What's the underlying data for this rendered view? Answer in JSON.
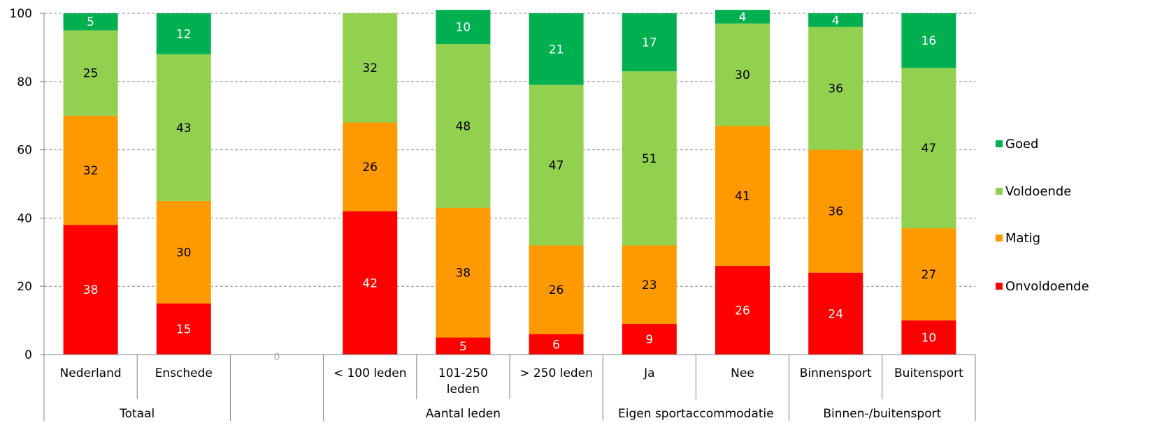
{
  "chart_data": {
    "type": "bar",
    "stacked": true,
    "title": "",
    "xlabel": "",
    "ylabel": "",
    "ylim": [
      0,
      100
    ],
    "y_ticks": [
      "0",
      "20",
      "40",
      "60",
      "80",
      "100"
    ],
    "grid": "horizontal dashed",
    "legend_position": "right",
    "categories": [
      {
        "label": [
          "Nederland"
        ],
        "group": "Totaal"
      },
      {
        "label": [
          "Enschede"
        ],
        "group": "Totaal"
      },
      {
        "label": [],
        "group": "",
        "marker": "0"
      },
      {
        "label": [
          "< 100 leden"
        ],
        "group": "Aantal leden"
      },
      {
        "label": [
          "101-250",
          "leden"
        ],
        "group": "Aantal leden"
      },
      {
        "label": [
          "> 250 leden"
        ],
        "group": "Aantal leden"
      },
      {
        "label": [
          "Ja"
        ],
        "group": "Eigen sportaccommodatie"
      },
      {
        "label": [
          "Nee"
        ],
        "group": "Eigen sportaccommodatie"
      },
      {
        "label": [
          "Binnensport"
        ],
        "group": "Binnen-/buitensport"
      },
      {
        "label": [
          "Buitensport"
        ],
        "group": "Binnen-/buitensport"
      }
    ],
    "groups": [
      "Totaal",
      "",
      "Aantal leden",
      "Eigen sportaccommodatie",
      "Binnen-/buitensport"
    ],
    "series": [
      {
        "name": "Onvoldoende",
        "color": "#ff0000",
        "label_color": "#ffffff",
        "values": [
          38,
          15,
          null,
          42,
          5,
          6,
          9,
          26,
          24,
          10
        ]
      },
      {
        "name": "Matig",
        "color": "#ff9900",
        "label_color": "#000000",
        "values": [
          32,
          30,
          null,
          26,
          38,
          26,
          23,
          41,
          36,
          27
        ]
      },
      {
        "name": "Voldoende",
        "color": "#92d050",
        "label_color": "#000000",
        "values": [
          25,
          43,
          null,
          32,
          48,
          47,
          51,
          30,
          36,
          47
        ]
      },
      {
        "name": "Goed",
        "color": "#00b050",
        "label_color": "#ffffff",
        "values": [
          5,
          12,
          null,
          0,
          10,
          21,
          17,
          4,
          4,
          16
        ]
      }
    ],
    "bar_values_shown": [
      [
        5,
        25,
        32,
        38
      ],
      [
        12,
        43,
        30,
        15
      ],
      [],
      [
        null,
        32,
        26,
        42
      ],
      [
        10,
        48,
        38,
        5
      ],
      [
        21,
        47,
        26,
        6
      ],
      [
        17,
        51,
        23,
        9
      ],
      [
        4,
        30,
        41,
        26
      ],
      [
        4,
        36,
        36,
        24
      ],
      [
        16,
        47,
        27,
        10
      ]
    ],
    "legend_order": [
      "Goed",
      "Voldoende",
      "Matig",
      "Onvoldoende"
    ]
  }
}
